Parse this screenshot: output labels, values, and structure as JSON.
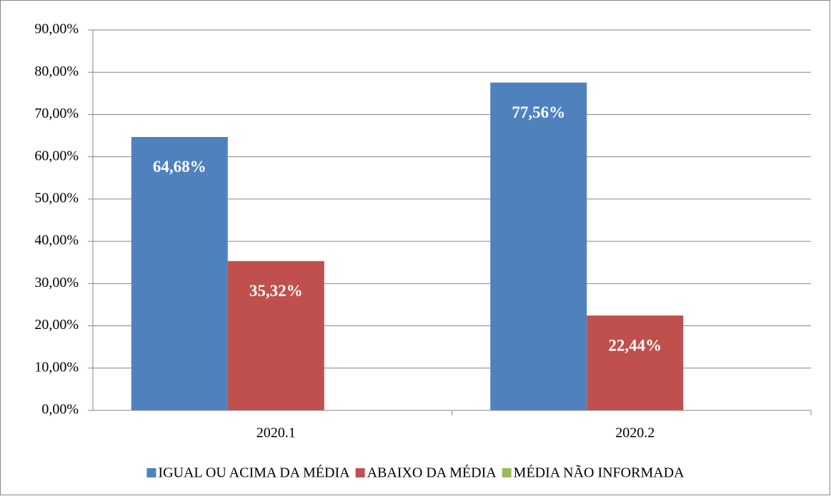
{
  "chart_data": {
    "type": "bar",
    "categories": [
      "2020.1",
      "2020.2"
    ],
    "series": [
      {
        "name": "IGUAL OU ACIMA DA MÉDIA",
        "color": "#4f81bd",
        "values": [
          64.68,
          77.56
        ],
        "value_labels": [
          "64,68%",
          "77,56%"
        ]
      },
      {
        "name": "ABAIXO DA MÉDIA",
        "color": "#c0504d",
        "values": [
          35.32,
          22.44
        ],
        "value_labels": [
          "35,32%",
          "22,44%"
        ]
      },
      {
        "name": "MÉDIA NÃO INFORMADA",
        "color": "#9bbb59",
        "values": [
          0,
          0
        ]
      }
    ],
    "ylim": [
      0,
      90
    ],
    "yticks": [
      {
        "value": 0,
        "label": "0,00%"
      },
      {
        "value": 10,
        "label": "10,00%"
      },
      {
        "value": 20,
        "label": "20,00%"
      },
      {
        "value": 30,
        "label": "30,00%"
      },
      {
        "value": 40,
        "label": "40,00%"
      },
      {
        "value": 50,
        "label": "50,00%"
      },
      {
        "value": 60,
        "label": "60,00%"
      },
      {
        "value": 70,
        "label": "70,00%"
      },
      {
        "value": 80,
        "label": "80,00%"
      },
      {
        "value": 90,
        "label": "90,00%"
      }
    ],
    "grid": true,
    "legend": "bottom"
  }
}
